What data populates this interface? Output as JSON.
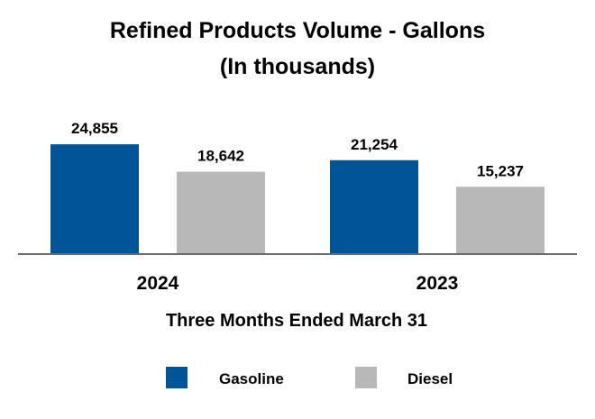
{
  "chart_data": {
    "type": "bar",
    "title": "Refined Products Volume - Gallons",
    "subtitle": "(In thousands)",
    "xlabel": "Three Months Ended March 31",
    "ylabel": "",
    "categories": [
      "2024",
      "2023"
    ],
    "series": [
      {
        "name": "Gasoline",
        "color": "#005596",
        "values": [
          24855,
          21254
        ],
        "labels": [
          "24,855",
          "21,254"
        ]
      },
      {
        "name": "Diesel",
        "color": "#B8B8B8",
        "values": [
          18642,
          15237
        ],
        "labels": [
          "18,642",
          "15,237"
        ]
      }
    ],
    "ylim": [
      0,
      31000
    ],
    "grid": false,
    "legend_position": "bottom-center"
  }
}
